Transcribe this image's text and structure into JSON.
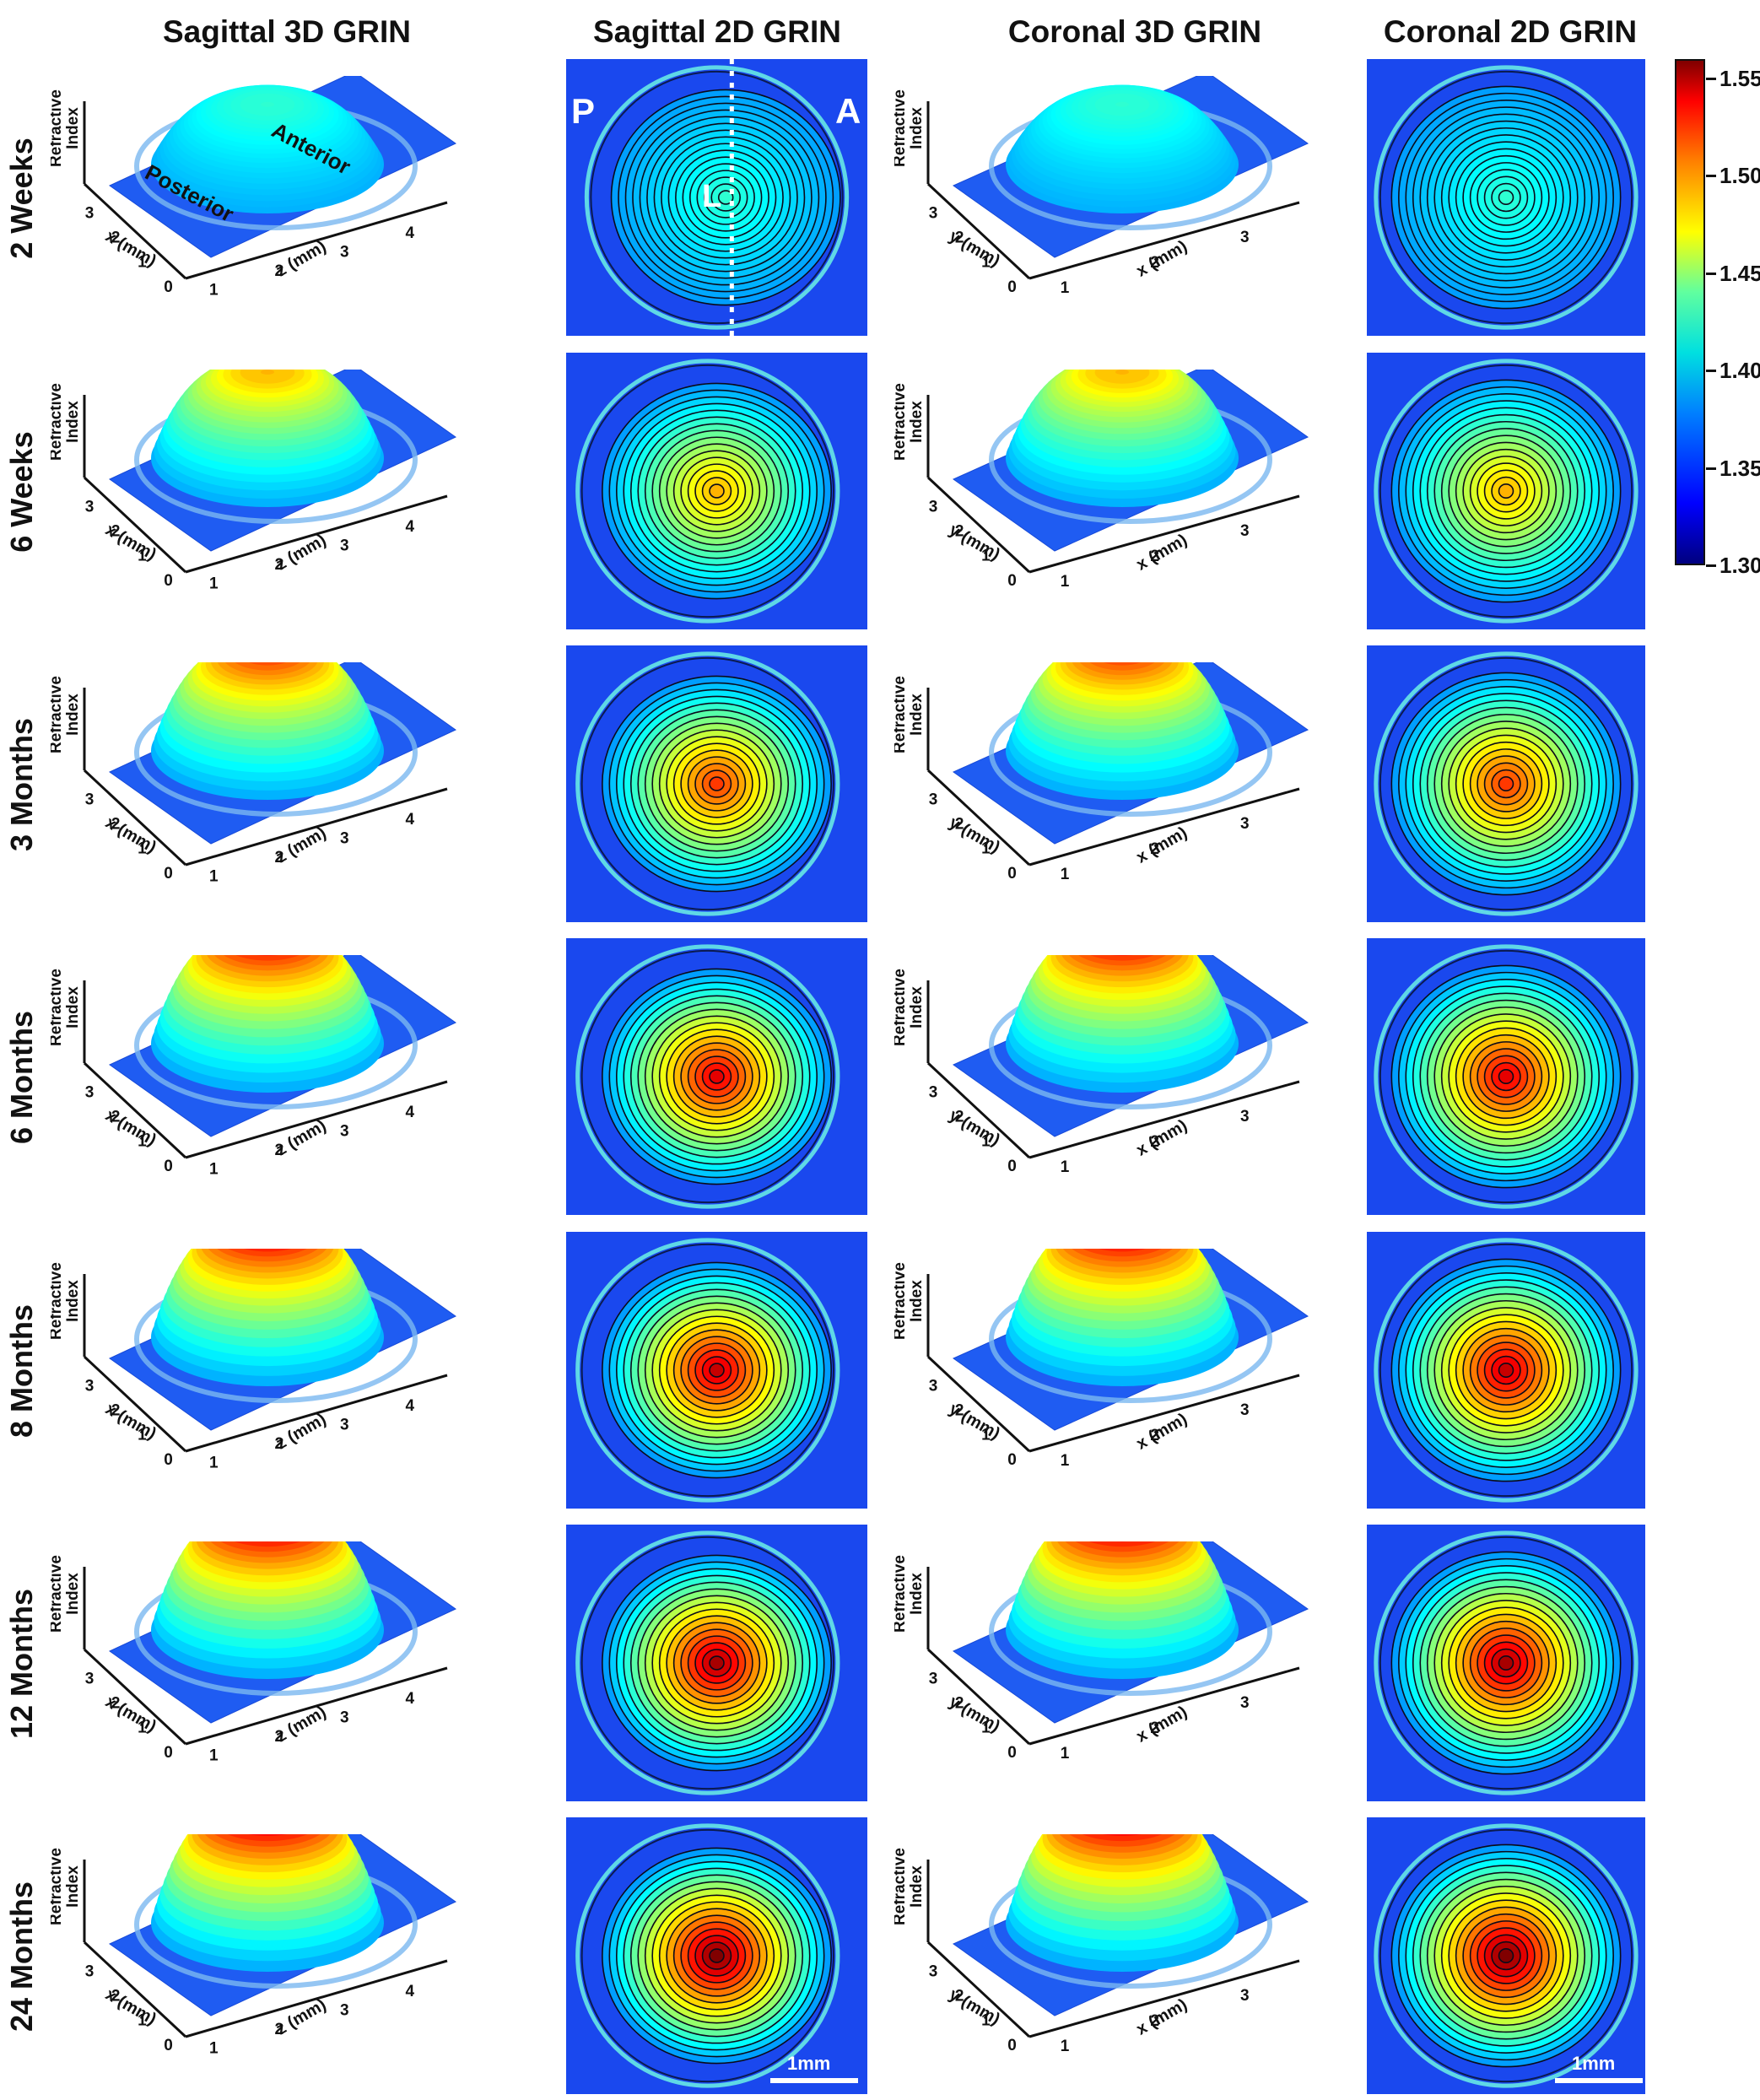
{
  "columns": [
    "Sagittal 3D GRIN",
    "Sagittal 2D GRIN",
    "Coronal 3D GRIN",
    "Coronal 2D GRIN"
  ],
  "rows": [
    {
      "label": "2 Weeks",
      "peak": 0.42
    },
    {
      "label": "6 Weeks",
      "peak": 0.7
    },
    {
      "label": "3 Months",
      "peak": 0.82
    },
    {
      "label": "6 Months",
      "peak": 0.9
    },
    {
      "label": "8 Months",
      "peak": 0.93
    },
    {
      "label": "12 Months",
      "peak": 0.96
    },
    {
      "label": "24 Months",
      "peak": 1.0
    }
  ],
  "axis": {
    "z_label": "Refractive Index",
    "z_label_line1": "Refractive",
    "z_label_line2": "Index",
    "sagittal_x_label": "x (mm)",
    "sagittal_z_label": "z (mm)",
    "coronal_y_label": "y (mm)",
    "coronal_x_label": "x (mm)",
    "left_ticks": [
      "3",
      "2",
      "1",
      "0"
    ],
    "right_ticks": [
      "1",
      "2",
      "3",
      "4"
    ],
    "coronal_right_ticks": [
      "1",
      "2",
      "3"
    ]
  },
  "annotations": {
    "anterior": "Anterior",
    "posterior": "Posterior",
    "P": "P",
    "A": "A",
    "L": "L",
    "scale_bar": "1mm"
  },
  "colorbar": {
    "ticks": [
      "1.55",
      "1.50",
      "1.45",
      "1.40",
      "1.35",
      "1.30"
    ],
    "values": [
      1.55,
      1.5,
      1.45,
      1.4,
      1.35,
      1.3
    ],
    "min": 1.3,
    "max": 1.56
  }
}
